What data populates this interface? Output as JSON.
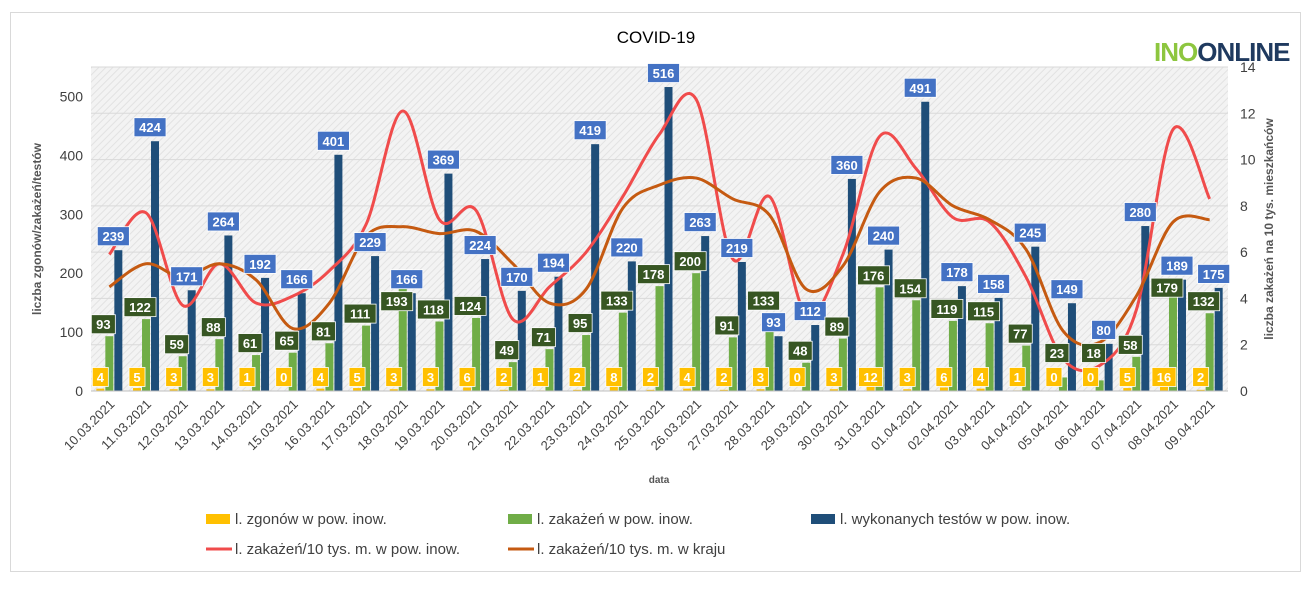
{
  "logo": {
    "part1": "INO",
    "part2": "ONLINE"
  },
  "chart_data": {
    "type": "bar",
    "title": "COVID-19",
    "xlabel": "data",
    "ylabel": "liczba zgonów/zakażeń/testów",
    "y2label": "liczba zakażeń na 10 tys. mieszkańców",
    "ylim": [
      0,
      550
    ],
    "y2lim": [
      0,
      14
    ],
    "yticks": [
      0,
      100,
      200,
      300,
      400,
      500
    ],
    "y2ticks": [
      0,
      2,
      4,
      6,
      8,
      10,
      12,
      14
    ],
    "categories": [
      "10.03.2021",
      "11.03.2021",
      "12.03.2021",
      "13.03.2021",
      "14.03.2021",
      "15.03.2021",
      "16.03.2021",
      "17.03.2021",
      "18.03.2021",
      "19.03.2021",
      "20.03.2021",
      "21.03.2021",
      "22.03.2021",
      "23.03.2021",
      "24.03.2021",
      "25.03.2021",
      "26.03.2021",
      "27.03.2021",
      "28.03.2021",
      "29.03.2021",
      "30.03.2021",
      "31.03.2021",
      "01.04.2021",
      "02.04.2021",
      "03.04.2021",
      "04.04.2021",
      "05.04.2021",
      "06.04.2021",
      "07.04.2021",
      "08.04.2021",
      "09.04.2021"
    ],
    "series": [
      {
        "name": "l. zgonów w pow. inow.",
        "kind": "bar",
        "color": "#ffc000",
        "label_bg": "#ffc000",
        "values": [
          4,
          5,
          3,
          3,
          1,
          0,
          4,
          5,
          3,
          3,
          6,
          2,
          1,
          2,
          8,
          2,
          4,
          2,
          3,
          0,
          3,
          12,
          3,
          6,
          4,
          1,
          0,
          0,
          5,
          16,
          2
        ]
      },
      {
        "name": "l. zakażeń w pow. inow.",
        "kind": "bar",
        "color": "#70ad47",
        "label_bg": "#375623",
        "values": [
          93,
          122,
          59,
          88,
          61,
          65,
          81,
          111,
          193,
          118,
          124,
          49,
          71,
          95,
          133,
          178,
          200,
          91,
          133,
          48,
          89,
          176,
          154,
          119,
          115,
          77,
          23,
          18,
          58,
          179,
          132
        ]
      },
      {
        "name": "l. wykonanych testów w pow. inow.",
        "kind": "bar",
        "color": "#1f4e79",
        "label_bg": "#4472c4",
        "values": [
          239,
          424,
          171,
          264,
          192,
          166,
          401,
          229,
          166,
          369,
          224,
          170,
          194,
          419,
          220,
          516,
          263,
          219,
          93,
          112,
          360,
          240,
          491,
          178,
          158,
          245,
          149,
          80,
          280,
          189,
          175
        ]
      },
      {
        "name": "l. zakażeń/10 tys. m. w pow. inow.",
        "kind": "line",
        "axis": "y2",
        "color": "#f04b4b",
        "values": [
          5.9,
          7.7,
          3.7,
          5.5,
          3.8,
          4.1,
          5.2,
          7.2,
          12.1,
          7.4,
          7.8,
          3.1,
          4.5,
          6.0,
          8.4,
          11.1,
          12.6,
          5.7,
          8.4,
          3.3,
          5.9,
          11.0,
          9.6,
          7.5,
          7.3,
          4.9,
          1.4,
          1.1,
          3.5,
          11.3,
          8.3
        ]
      },
      {
        "name": "l. zakażeń/10 tys. m. w kraju",
        "kind": "line",
        "axis": "y2",
        "color": "#c55a11",
        "values": [
          4.5,
          5.5,
          4.9,
          5.5,
          4.8,
          2.7,
          3.8,
          6.7,
          7.1,
          6.8,
          6.9,
          5.5,
          3.8,
          4.4,
          7.9,
          8.9,
          9.2,
          8.3,
          7.6,
          4.4,
          5.4,
          8.6,
          9.2,
          8.0,
          7.4,
          6.1,
          2.6,
          2.1,
          4.1,
          7.3,
          7.4
        ]
      }
    ],
    "grid": true,
    "legend_position": "bottom"
  }
}
